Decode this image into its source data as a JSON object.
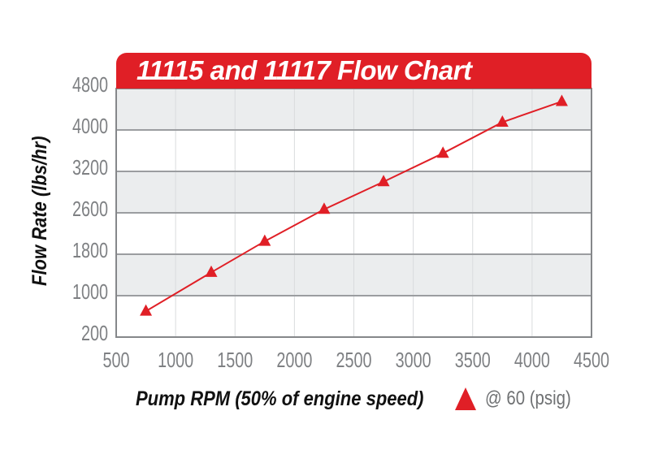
{
  "chart_data": {
    "type": "line",
    "title": "11115 and 11117 Flow Chart",
    "xlabel": "Pump RPM (50% of engine speed)",
    "ylabel": "Flow Rate (lbs/hr)",
    "x_ticks": [
      500,
      1000,
      1500,
      2000,
      2500,
      3000,
      3500,
      4000,
      4500
    ],
    "y_ticks": [
      200,
      1000,
      1800,
      2600,
      3200,
      4000,
      4800
    ],
    "xlim": [
      500,
      4500
    ],
    "ylim": [
      200,
      4800
    ],
    "grid": "horizontal major gray lines, light vertical lines, alternating gray/white horizontal bands",
    "legend": {
      "position": "bottom-right",
      "marker": "triangle-up",
      "label": "@ 60 (psig)"
    },
    "series": [
      {
        "name": "@ 60 (psig)",
        "marker": "triangle-up",
        "color": "#e01f26",
        "points": [
          [
            750,
            700
          ],
          [
            1300,
            1450
          ],
          [
            1750,
            2050
          ],
          [
            2250,
            2650
          ],
          [
            2750,
            3050
          ],
          [
            3250,
            3550
          ],
          [
            3750,
            4150
          ],
          [
            4250,
            4550
          ]
        ]
      }
    ]
  },
  "colors": {
    "banner_red": "#e01f26",
    "banner_text": "#ffffff",
    "band_gray": "#ebedee",
    "band_white": "#ffffff",
    "grid_major": "#9b9da0",
    "grid_minor": "#d9dbdd",
    "plot_border": "#85878a",
    "tick_text": "#7e8083",
    "axis_title_text": "#111111",
    "legend_text": "#6f7173"
  }
}
